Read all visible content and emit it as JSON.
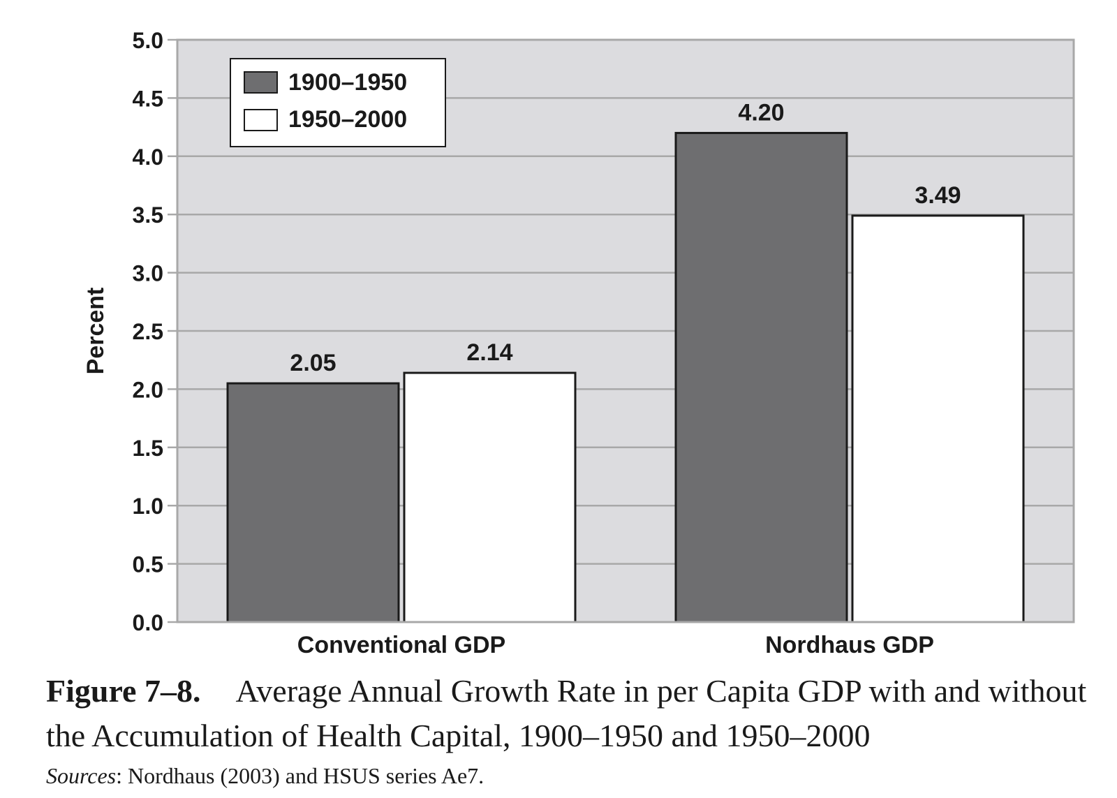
{
  "chart_data": {
    "type": "bar",
    "categories": [
      "Conventional GDP",
      "Nordhaus GDP"
    ],
    "series": [
      {
        "name": "1900–1950",
        "values": [
          2.05,
          4.2
        ],
        "labels": [
          "2.05",
          "4.20"
        ],
        "color": "#6e6e70"
      },
      {
        "name": "1950–2000",
        "values": [
          2.14,
          3.49
        ],
        "labels": [
          "2.14",
          "3.49"
        ],
        "color": "#ffffff"
      }
    ],
    "xlabel": "",
    "ylabel": "Percent",
    "ylim": [
      0,
      5
    ],
    "yticks": [
      "0.0",
      "0.5",
      "1.0",
      "1.5",
      "2.0",
      "2.5",
      "3.0",
      "3.5",
      "4.0",
      "4.5",
      "5.0"
    ],
    "grid": true,
    "legend_position": "top-left",
    "plot_background": "#dcdcdf",
    "gridline_color": "#a8a8a8"
  },
  "caption": {
    "figure_number": "Figure 7–8.",
    "text": "Average Annual Growth Rate in per Capita GDP with and without the Accumulation of Health Capital, 1900–1950 and 1950–2000"
  },
  "sources": {
    "label": "Sources",
    "text": ":  Nordhaus (2003) and HSUS series Ae7."
  }
}
